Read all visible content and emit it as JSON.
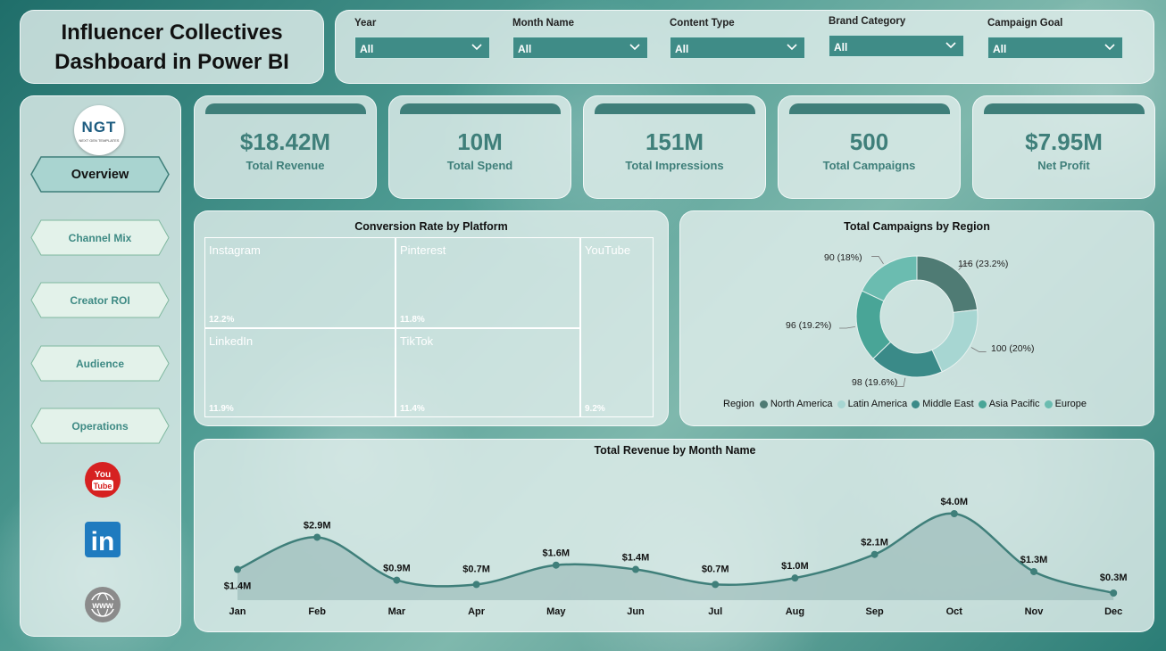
{
  "title": {
    "line1": "Influencer Collectives",
    "line2": "Dashboard in Power BI"
  },
  "filters": [
    {
      "label": "Year",
      "value": "All"
    },
    {
      "label": "Month Name",
      "value": "All"
    },
    {
      "label": "Content Type",
      "value": "All"
    },
    {
      "label": "Brand Category",
      "value": "All"
    },
    {
      "label": "Campaign Goal",
      "value": "All"
    }
  ],
  "logo": {
    "text": "NGT",
    "subtext": "NEXT GEN TEMPLATES"
  },
  "nav": [
    {
      "label": "Overview",
      "active": true
    },
    {
      "label": "Channel Mix",
      "active": false
    },
    {
      "label": "Creator ROI",
      "active": false
    },
    {
      "label": "Audience",
      "active": false
    },
    {
      "label": "Operations",
      "active": false
    }
  ],
  "social_icons": [
    "youtube-icon",
    "linkedin-icon",
    "www-globe-icon"
  ],
  "icon_text": {
    "youtube_you": "You",
    "youtube_tube": "Tube",
    "linkedin": "in",
    "www": "www"
  },
  "kpis": [
    {
      "value": "$18.42M",
      "label": "Total Revenue"
    },
    {
      "value": "10M",
      "label": "Total Spend"
    },
    {
      "value": "151M",
      "label": "Total Impressions"
    },
    {
      "value": "500",
      "label": "Total Campaigns"
    },
    {
      "value": "$7.95M",
      "label": "Net Profit"
    }
  ],
  "colors": {
    "primary": "#3f7f7a",
    "teal_light": "#9fd0cc",
    "teal_mid": "#3a9a90",
    "teal_dark": "#4f7b74"
  },
  "chart_data": [
    {
      "type": "treemap",
      "title": "Conversion Rate by Platform",
      "items": [
        {
          "name": "Instagram",
          "value": 12.2,
          "label": "12.2%",
          "color": "#3f8581"
        },
        {
          "name": "Pinterest",
          "value": 11.8,
          "label": "11.8%",
          "color": "#6bb6ac"
        },
        {
          "name": "YouTube",
          "value": 9.2,
          "label": "9.2%",
          "color": "#4f7b74"
        },
        {
          "name": "LinkedIn",
          "value": 11.9,
          "label": "11.9%",
          "color": "#43a498"
        },
        {
          "name": "TikTok",
          "value": 11.4,
          "label": "11.4%",
          "color": "#158574"
        }
      ]
    },
    {
      "type": "pie",
      "title": "Total Campaigns by Region",
      "legend_title": "Region",
      "legend_position": "bottom",
      "slices": [
        {
          "name": "North America",
          "value": 116,
          "label": "116 (23.2%)",
          "color": "#4f7b74"
        },
        {
          "name": "Latin America",
          "value": 100,
          "label": "100 (20%)",
          "color": "#a7d6d2"
        },
        {
          "name": "Middle East",
          "value": 98,
          "label": "98 (19.6%)",
          "color": "#3a8a88"
        },
        {
          "name": "Asia Pacific",
          "value": 96,
          "label": "96 (19.2%)",
          "color": "#49a597"
        },
        {
          "name": "Europe",
          "value": 90,
          "label": "90 (18%)",
          "color": "#6bbcb0"
        }
      ]
    },
    {
      "type": "area",
      "title": "Total Revenue by Month Name",
      "categories": [
        "Jan",
        "Feb",
        "Mar",
        "Apr",
        "May",
        "Jun",
        "Jul",
        "Aug",
        "Sep",
        "Oct",
        "Nov",
        "Dec"
      ],
      "values": [
        1.4,
        2.9,
        0.9,
        0.7,
        1.6,
        1.4,
        0.7,
        1.0,
        2.1,
        4.0,
        1.3,
        0.3
      ],
      "labels": [
        "$1.4M",
        "$2.9M",
        "$0.9M",
        "$0.7M",
        "$1.6M",
        "$1.4M",
        "$0.7M",
        "$1.0M",
        "$2.1M",
        "$4.0M",
        "$1.3M",
        "$0.3M"
      ],
      "color": "#3f7f7a"
    }
  ]
}
